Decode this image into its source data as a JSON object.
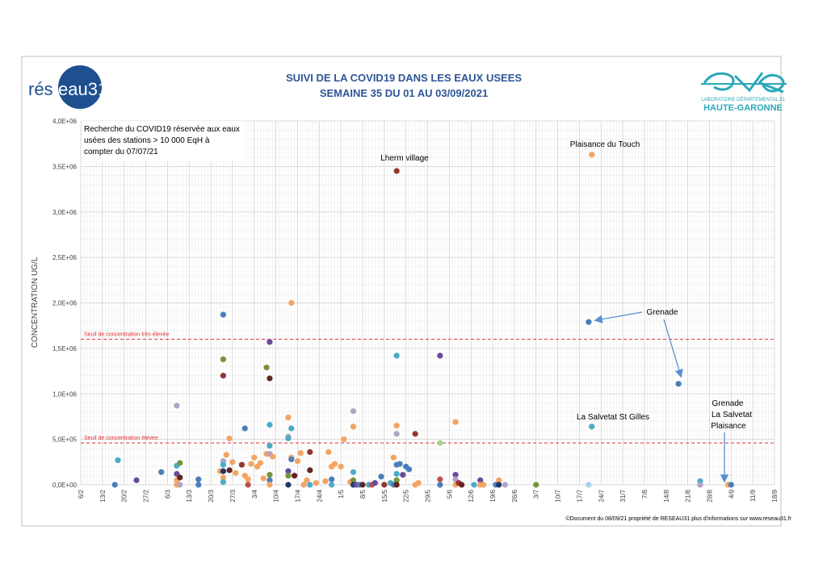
{
  "header": {
    "title_line1": "SUIVI DE LA COVID19 DANS LES EAUX USEES",
    "title_line2": "SEMAINE 35 DU 01 AU 03/09/2021",
    "logo_left_text_a": "rés",
    "logo_left_text_b": "eau31",
    "logo_right_line1": "LABORATOIRE DÉPARTEMENTAL 31",
    "logo_right_line2": "HAUTE-GARONNE",
    "footer": "©Document du 08/09/21 propriété de RESEAU31 plus d'informations sur www.reseau31.fr"
  },
  "chart_data": {
    "type": "scatter",
    "ylabel": "CONCENTRATION UG/L",
    "xlabel": "",
    "x_ticks": [
      "6/2",
      "13/2",
      "20/2",
      "27/2",
      "6/3",
      "13/3",
      "20/3",
      "27/3",
      "3/4",
      "10/4",
      "17/4",
      "24/4",
      "1/5",
      "8/5",
      "15/5",
      "22/5",
      "29/5",
      "5/6",
      "12/6",
      "19/6",
      "26/6",
      "3/7",
      "10/7",
      "17/7",
      "24/7",
      "31/7",
      "7/8",
      "14/8",
      "21/8",
      "28/8",
      "4/9",
      "11/9",
      "18/9"
    ],
    "y_ticks": [
      "0,0E+00",
      "5,0E+05",
      "1,0E+06",
      "1,5E+06",
      "2,0E+06",
      "2,5E+06",
      "3,0E+06",
      "3,5E+06",
      "4,0E+06"
    ],
    "y_tick_values": [
      0,
      500000,
      1000000,
      1500000,
      2000000,
      2500000,
      3000000,
      3500000,
      4000000
    ],
    "ylim": [
      0,
      4000000
    ],
    "x_range_days": [
      0,
      224
    ],
    "grid": true,
    "thresholds": [
      {
        "label": "Seuil de concentration très élevée",
        "value": 1600000,
        "color": "#e03030"
      },
      {
        "label": "Seuil de concentration élevée",
        "value": 460000,
        "color": "#e03030"
      }
    ],
    "note": "Recherche du COVID19 réservée aux eaux usées des stations > 10 000 EqH à compter du 07/07/21",
    "annotations": [
      {
        "text": "Lherm village"
      },
      {
        "text": "Plaisance du Touch"
      },
      {
        "text": "Grenade"
      },
      {
        "text": "La Salvetat St Gilles"
      },
      {
        "text": "Grenade"
      },
      {
        "text": "La Salvetat"
      },
      {
        "text": "Plaisance"
      }
    ],
    "points": [
      {
        "x": 11,
        "y": 0,
        "c": "#4a7ebb"
      },
      {
        "x": 12,
        "y": 270000,
        "c": "#4bacc6"
      },
      {
        "x": 18,
        "y": 50000,
        "c": "#6a4a9c"
      },
      {
        "x": 26,
        "y": 140000,
        "c": "#4a7ebb"
      },
      {
        "x": 31,
        "y": 870000,
        "c": "#b3a2c7"
      },
      {
        "x": 31,
        "y": 210000,
        "c": "#4bacc6"
      },
      {
        "x": 31,
        "y": 120000,
        "c": "#6a4a9c"
      },
      {
        "x": 31,
        "y": 50000,
        "c": "#f4a460"
      },
      {
        "x": 31,
        "y": 0,
        "c": "#f4a460"
      },
      {
        "x": 32,
        "y": 240000,
        "c": "#77933c"
      },
      {
        "x": 32,
        "y": 80000,
        "c": "#632523"
      },
      {
        "x": 32,
        "y": 0,
        "c": "#b3a2c7"
      },
      {
        "x": 38,
        "y": 60000,
        "c": "#4a7ebb"
      },
      {
        "x": 38,
        "y": 0,
        "c": "#4a7ebb"
      },
      {
        "x": 46,
        "y": 1870000,
        "c": "#4a7ebb"
      },
      {
        "x": 46,
        "y": 1380000,
        "c": "#77933c"
      },
      {
        "x": 46,
        "y": 1200000,
        "c": "#943634"
      },
      {
        "x": 45,
        "y": 150000,
        "c": "#f4a460"
      },
      {
        "x": 46,
        "y": 260000,
        "c": "#b3a2c7"
      },
      {
        "x": 46,
        "y": 220000,
        "c": "#4bacc6"
      },
      {
        "x": 46,
        "y": 150000,
        "c": "#1f3864"
      },
      {
        "x": 46,
        "y": 80000,
        "c": "#f4a460"
      },
      {
        "x": 46,
        "y": 30000,
        "c": "#4bacc6"
      },
      {
        "x": 47,
        "y": 330000,
        "c": "#f4a460"
      },
      {
        "x": 48,
        "y": 510000,
        "c": "#f4a460"
      },
      {
        "x": 48,
        "y": 160000,
        "c": "#632523"
      },
      {
        "x": 49,
        "y": 250000,
        "c": "#f4a460"
      },
      {
        "x": 50,
        "y": 130000,
        "c": "#f4a460"
      },
      {
        "x": 52,
        "y": 220000,
        "c": "#943634"
      },
      {
        "x": 53,
        "y": 620000,
        "c": "#4a7ebb"
      },
      {
        "x": 53,
        "y": 100000,
        "c": "#f4a460"
      },
      {
        "x": 54,
        "y": 60000,
        "c": "#f4a460"
      },
      {
        "x": 54,
        "y": 0,
        "c": "#c0504d"
      },
      {
        "x": 55,
        "y": 230000,
        "c": "#f4a460"
      },
      {
        "x": 56,
        "y": 300000,
        "c": "#f4a460"
      },
      {
        "x": 57,
        "y": 200000,
        "c": "#f4a460"
      },
      {
        "x": 58,
        "y": 240000,
        "c": "#f4a460"
      },
      {
        "x": 59,
        "y": 70000,
        "c": "#f4a460"
      },
      {
        "x": 60,
        "y": 1290000,
        "c": "#77933c"
      },
      {
        "x": 60,
        "y": 340000,
        "c": "#f4a460"
      },
      {
        "x": 61,
        "y": 1570000,
        "c": "#6a4a9c"
      },
      {
        "x": 61,
        "y": 1170000,
        "c": "#632523"
      },
      {
        "x": 61,
        "y": 660000,
        "c": "#4bacc6"
      },
      {
        "x": 61,
        "y": 430000,
        "c": "#4bacc6"
      },
      {
        "x": 61,
        "y": 340000,
        "c": "#b3a2c7"
      },
      {
        "x": 61,
        "y": 110000,
        "c": "#77933c"
      },
      {
        "x": 61,
        "y": 50000,
        "c": "#4a7ebb"
      },
      {
        "x": 61,
        "y": 0,
        "c": "#f4a460"
      },
      {
        "x": 62,
        "y": 310000,
        "c": "#f4a460"
      },
      {
        "x": 67,
        "y": 740000,
        "c": "#f4a460"
      },
      {
        "x": 67,
        "y": 530000,
        "c": "#b3a2c7"
      },
      {
        "x": 67,
        "y": 510000,
        "c": "#4bacc6"
      },
      {
        "x": 67,
        "y": 150000,
        "c": "#6a4a9c"
      },
      {
        "x": 67,
        "y": 100000,
        "c": "#77933c"
      },
      {
        "x": 67,
        "y": 0,
        "c": "#1f3864"
      },
      {
        "x": 68,
        "y": 2000000,
        "c": "#f4a460"
      },
      {
        "x": 68,
        "y": 620000,
        "c": "#4bacc6"
      },
      {
        "x": 68,
        "y": 300000,
        "c": "#f4a460"
      },
      {
        "x": 68,
        "y": 280000,
        "c": "#4a7ebb"
      },
      {
        "x": 69,
        "y": 100000,
        "c": "#632523"
      },
      {
        "x": 70,
        "y": 260000,
        "c": "#f4a460"
      },
      {
        "x": 71,
        "y": 350000,
        "c": "#f4a460"
      },
      {
        "x": 72,
        "y": 0,
        "c": "#f4a460"
      },
      {
        "x": 73,
        "y": 50000,
        "c": "#f4a460"
      },
      {
        "x": 74,
        "y": 360000,
        "c": "#943634"
      },
      {
        "x": 74,
        "y": 160000,
        "c": "#632523"
      },
      {
        "x": 74,
        "y": 0,
        "c": "#4bacc6"
      },
      {
        "x": 76,
        "y": 20000,
        "c": "#f4a460"
      },
      {
        "x": 79,
        "y": 40000,
        "c": "#f4a460"
      },
      {
        "x": 80,
        "y": 360000,
        "c": "#f4a460"
      },
      {
        "x": 81,
        "y": 200000,
        "c": "#f4a460"
      },
      {
        "x": 81,
        "y": 60000,
        "c": "#4a7ebb"
      },
      {
        "x": 81,
        "y": 0,
        "c": "#4bacc6"
      },
      {
        "x": 82,
        "y": 230000,
        "c": "#f4a460"
      },
      {
        "x": 84,
        "y": 200000,
        "c": "#f4a460"
      },
      {
        "x": 85,
        "y": 500000,
        "c": "#f4a460"
      },
      {
        "x": 87,
        "y": 30000,
        "c": "#f4a460"
      },
      {
        "x": 88,
        "y": 810000,
        "c": "#b3a2c7"
      },
      {
        "x": 88,
        "y": 640000,
        "c": "#f4a460"
      },
      {
        "x": 88,
        "y": 140000,
        "c": "#4bacc6"
      },
      {
        "x": 88,
        "y": 50000,
        "c": "#77933c"
      },
      {
        "x": 88,
        "y": 0,
        "c": "#1f3864"
      },
      {
        "x": 89,
        "y": 0,
        "c": "#6a4a9c"
      },
      {
        "x": 90,
        "y": 0,
        "c": "#4a7ebb"
      },
      {
        "x": 91,
        "y": 0,
        "c": "#632523"
      },
      {
        "x": 93,
        "y": 0,
        "c": "#4bacc6"
      },
      {
        "x": 94,
        "y": 0,
        "c": "#c0504d"
      },
      {
        "x": 95,
        "y": 20000,
        "c": "#6a4a9c"
      },
      {
        "x": 97,
        "y": 90000,
        "c": "#4a7ebb"
      },
      {
        "x": 98,
        "y": 0,
        "c": "#943634"
      },
      {
        "x": 100,
        "y": 20000,
        "c": "#4bacc6"
      },
      {
        "x": 101,
        "y": 300000,
        "c": "#f4a460"
      },
      {
        "x": 101,
        "y": 0,
        "c": "#4a7ebb"
      },
      {
        "x": 102,
        "y": 3450000,
        "c": "#943634"
      },
      {
        "x": 102,
        "y": 1420000,
        "c": "#4bacc6"
      },
      {
        "x": 102,
        "y": 650000,
        "c": "#f4a460"
      },
      {
        "x": 102,
        "y": 560000,
        "c": "#b3a2c7"
      },
      {
        "x": 102,
        "y": 220000,
        "c": "#4a7ebb"
      },
      {
        "x": 102,
        "y": 120000,
        "c": "#4bacc6"
      },
      {
        "x": 102,
        "y": 50000,
        "c": "#77933c"
      },
      {
        "x": 102,
        "y": 0,
        "c": "#632523"
      },
      {
        "x": 103,
        "y": 230000,
        "c": "#4a7ebb"
      },
      {
        "x": 104,
        "y": 110000,
        "c": "#6a4a9c"
      },
      {
        "x": 105,
        "y": 200000,
        "c": "#4a7ebb"
      },
      {
        "x": 106,
        "y": 170000,
        "c": "#4a7ebb"
      },
      {
        "x": 108,
        "y": 560000,
        "c": "#943634"
      },
      {
        "x": 108,
        "y": 0,
        "c": "#f4a460"
      },
      {
        "x": 109,
        "y": 20000,
        "c": "#f4a460"
      },
      {
        "x": 116,
        "y": 1420000,
        "c": "#6a4a9c"
      },
      {
        "x": 116,
        "y": 460000,
        "c": "#a9d18e"
      },
      {
        "x": 116,
        "y": 60000,
        "c": "#c0504d"
      },
      {
        "x": 116,
        "y": 0,
        "c": "#4a7ebb"
      },
      {
        "x": 121,
        "y": 690000,
        "c": "#f4a460"
      },
      {
        "x": 121,
        "y": 110000,
        "c": "#6a4a9c"
      },
      {
        "x": 121,
        "y": 60000,
        "c": "#b3a2c7"
      },
      {
        "x": 121,
        "y": 0,
        "c": "#f4a460"
      },
      {
        "x": 122,
        "y": 20000,
        "c": "#943634"
      },
      {
        "x": 123,
        "y": 0,
        "c": "#632523"
      },
      {
        "x": 127,
        "y": 0,
        "c": "#4bacc6"
      },
      {
        "x": 129,
        "y": 50000,
        "c": "#6a4a9c"
      },
      {
        "x": 129,
        "y": 0,
        "c": "#f4a460"
      },
      {
        "x": 130,
        "y": 0,
        "c": "#f4a460"
      },
      {
        "x": 134,
        "y": 0,
        "c": "#4a7ebb"
      },
      {
        "x": 135,
        "y": 50000,
        "c": "#f4a460"
      },
      {
        "x": 135,
        "y": 0,
        "c": "#1f3864"
      },
      {
        "x": 137,
        "y": 0,
        "c": "#b3a2c7"
      },
      {
        "x": 147,
        "y": 0,
        "c": "#77933c"
      },
      {
        "x": 164,
        "y": 1790000,
        "c": "#4a7ebb"
      },
      {
        "x": 165,
        "y": 3630000,
        "c": "#f4a460"
      },
      {
        "x": 165,
        "y": 640000,
        "c": "#4bacc6"
      },
      {
        "x": 164,
        "y": 0,
        "c": "#a9d5e6"
      },
      {
        "x": 193,
        "y": 1110000,
        "c": "#4a7ebb"
      },
      {
        "x": 200,
        "y": 40000,
        "c": "#4bacc6"
      },
      {
        "x": 200,
        "y": 0,
        "c": "#b3a2c7"
      },
      {
        "x": 209,
        "y": 0,
        "c": "#f4a460"
      },
      {
        "x": 210,
        "y": 0,
        "c": "#4a7ebb"
      }
    ]
  }
}
